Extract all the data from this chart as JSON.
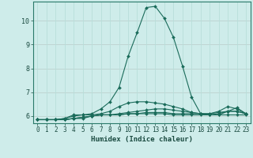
{
  "xlabel": "Humidex (Indice chaleur)",
  "ylabel": "",
  "background_color": "#ceecea",
  "grid_color_minor": "#b8deda",
  "grid_color_red": "#e8a0a0",
  "line_color": "#1a6b5a",
  "xlim": [
    -0.5,
    23.5
  ],
  "ylim": [
    5.7,
    10.8
  ],
  "xticks": [
    0,
    1,
    2,
    3,
    4,
    5,
    6,
    7,
    8,
    9,
    10,
    11,
    12,
    13,
    14,
    15,
    16,
    17,
    18,
    19,
    20,
    21,
    22,
    23
  ],
  "yticks": [
    6,
    7,
    8,
    9,
    10
  ],
  "series": [
    [
      5.85,
      5.85,
      5.85,
      5.9,
      6.05,
      6.05,
      6.1,
      6.3,
      6.6,
      7.2,
      8.5,
      9.5,
      10.55,
      10.6,
      10.1,
      9.3,
      8.1,
      6.8,
      6.1,
      6.05,
      6.05,
      6.2,
      6.2,
      6.1
    ],
    [
      5.85,
      5.85,
      5.85,
      5.9,
      6.0,
      6.05,
      6.05,
      6.1,
      6.2,
      6.4,
      6.55,
      6.6,
      6.6,
      6.55,
      6.5,
      6.4,
      6.3,
      6.15,
      6.1,
      6.05,
      6.1,
      6.2,
      6.35,
      6.1
    ],
    [
      5.85,
      5.85,
      5.85,
      5.85,
      5.9,
      5.95,
      6.0,
      6.05,
      6.05,
      6.05,
      6.1,
      6.1,
      6.15,
      6.15,
      6.15,
      6.1,
      6.1,
      6.1,
      6.1,
      6.1,
      6.15,
      6.2,
      6.2,
      6.1
    ],
    [
      5.85,
      5.85,
      5.85,
      5.85,
      5.9,
      5.95,
      6.0,
      6.05,
      6.05,
      6.1,
      6.15,
      6.2,
      6.25,
      6.3,
      6.3,
      6.25,
      6.2,
      6.15,
      6.1,
      6.1,
      6.2,
      6.4,
      6.3,
      6.1
    ],
    [
      5.85,
      5.85,
      5.85,
      5.85,
      5.9,
      5.9,
      6.0,
      6.05,
      6.05,
      6.05,
      6.1,
      6.1,
      6.1,
      6.1,
      6.1,
      6.05,
      6.05,
      6.05,
      6.05,
      6.05,
      6.05,
      6.05,
      6.05,
      6.05
    ]
  ]
}
